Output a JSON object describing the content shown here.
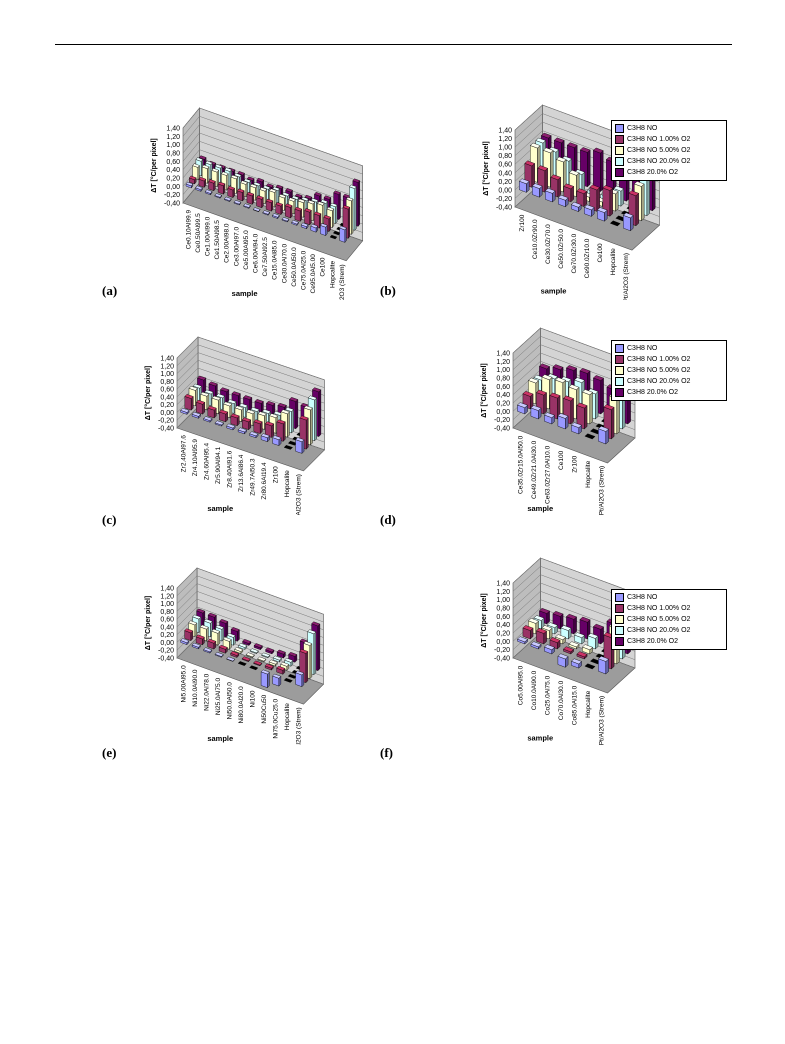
{
  "series_names": [
    "C3H8 NO",
    "C3H8 NO 1.00% O2",
    "C3H8 NO 5.00% O2",
    "C3H8 NO 20.0% O2",
    "C3H8 20.0% O2"
  ],
  "series_colors": [
    "#9999ff",
    "#993366",
    "#ffffcc",
    "#ccffff",
    "#660066"
  ],
  "series_tints": [
    "#c8c8ff",
    "#cc3366",
    "#fffff0",
    "#eaffff",
    "#8a1e6e"
  ],
  "chart_data": [
    {
      "type": "bar",
      "label": "(a)",
      "xlabel": "sample",
      "ylabel": "ΔT [°C/per pixel]",
      "ylim": [
        -0.4,
        1.4
      ],
      "yticks": [
        "-0,40",
        "-0,20",
        "0,00",
        "0,20",
        "0,40",
        "0,60",
        "0,80",
        "1,00",
        "1,20",
        "1,40"
      ],
      "categories": [
        "Ce0.10Al99.9",
        "Ce0.50Al99.5",
        "Ce1.00Al99.0",
        "Ce1.50Al98.5",
        "Ce2.00Al98.0",
        "Ce3.00Al97.0",
        "Ce5.00Al95.0",
        "Ce6.00Al94.0",
        "Ce7.50Al92.5",
        "Ce15.0Al85.0",
        "Ce30.0Al70.0",
        "Ce50.0Al50.0",
        "Ce75.0Al25.0",
        "Ce95.0Al5.00",
        "Ce100",
        "Hopcalite",
        "Pt/Al2O3 (Strem)"
      ],
      "series": [
        {
          "values": [
            0.05,
            0.04,
            0.03,
            0.02,
            0.02,
            0.02,
            0.02,
            0.01,
            0.02,
            0.03,
            0.02,
            0.03,
            0.05,
            0.1,
            0.2,
            0.0,
            0.3
          ]
        },
        {
          "values": [
            0.1,
            0.15,
            0.18,
            0.2,
            0.18,
            0.2,
            0.2,
            0.2,
            0.2,
            0.2,
            0.25,
            0.25,
            0.3,
            0.3,
            0.3,
            0.0,
            0.7
          ]
        },
        {
          "values": [
            0.3,
            0.35,
            0.35,
            0.35,
            0.35,
            0.3,
            0.3,
            0.3,
            0.35,
            0.3,
            0.3,
            0.35,
            0.4,
            0.45,
            0.4,
            0.0,
            0.8
          ]
        },
        {
          "values": [
            0.35,
            0.35,
            0.35,
            0.35,
            0.3,
            0.25,
            0.25,
            0.25,
            0.3,
            0.25,
            0.25,
            0.3,
            0.35,
            0.4,
            0.4,
            0.0,
            1.0
          ]
        },
        {
          "values": [
            0.3,
            0.25,
            0.25,
            0.25,
            0.25,
            0.2,
            0.25,
            0.2,
            0.25,
            0.25,
            0.2,
            0.25,
            0.4,
            0.4,
            0.6,
            0.6,
            1.05
          ]
        }
      ]
    },
    {
      "type": "bar",
      "label": "(b)",
      "xlabel": "sample",
      "ylabel": "ΔT [°C/per pixel]",
      "ylim": [
        -0.4,
        1.4
      ],
      "yticks": [
        "-0,40",
        "-0,20",
        "0,00",
        "0,20",
        "0,40",
        "0,60",
        "0,80",
        "1,00",
        "1,20",
        "1,40"
      ],
      "categories": [
        "Zr100",
        "Ce10.0Zr90.0",
        "Ce30.0Zr70.0",
        "Ce50.0Zr50.0",
        "Ce70.0Zr30.0",
        "Ce90.0Zr10.0",
        "Ce100",
        "Hopcalite",
        "Pt/Al2O3 (Strem)"
      ],
      "series": [
        {
          "values": [
            0.2,
            0.2,
            0.2,
            0.15,
            0.1,
            0.15,
            0.2,
            0.0,
            0.3
          ]
        },
        {
          "values": [
            0.5,
            0.5,
            0.4,
            0.3,
            0.3,
            0.5,
            0.6,
            0.0,
            0.7
          ]
        },
        {
          "values": [
            0.8,
            0.8,
            0.7,
            0.5,
            0.1,
            0.1,
            0.4,
            0.0,
            0.8
          ]
        },
        {
          "values": [
            0.8,
            0.7,
            0.6,
            0.4,
            0.1,
            0.1,
            0.35,
            0.0,
            1.0
          ]
        },
        {
          "values": [
            0.8,
            0.8,
            0.8,
            0.8,
            0.9,
            0.8,
            0.8,
            0.8,
            1.1
          ]
        }
      ]
    },
    {
      "type": "bar",
      "label": "(c)",
      "xlabel": "sample",
      "ylabel": "ΔT [°C/per pixel]",
      "ylim": [
        -0.4,
        1.4
      ],
      "yticks": [
        "-0,40",
        "-0,20",
        "0,00",
        "0,20",
        "0,40",
        "0,60",
        "0,80",
        "1,00",
        "1,20",
        "1,40"
      ],
      "categories": [
        "Zr2.40Al97.6",
        "Zr4.10Al95.9",
        "Zr4.60Al95.4",
        "Zr5.90Al94.1",
        "Zr8.40Al91.6",
        "Zr13.6Al86.4",
        "Zr49.7Al50.3",
        "Zr80.6Al19.4",
        "Zr100",
        "Hopcalite",
        "Pt/Al2O3 (Strem)"
      ],
      "series": [
        {
          "values": [
            0.05,
            0.05,
            0.04,
            0.03,
            0.05,
            0.05,
            0.05,
            0.1,
            0.15,
            0.0,
            0.3
          ]
        },
        {
          "values": [
            0.3,
            0.25,
            0.2,
            0.2,
            0.2,
            0.2,
            0.25,
            0.3,
            0.45,
            0.0,
            0.75
          ]
        },
        {
          "values": [
            0.4,
            0.35,
            0.35,
            0.3,
            0.3,
            0.3,
            0.35,
            0.4,
            0.6,
            0.0,
            0.9
          ]
        },
        {
          "values": [
            0.35,
            0.3,
            0.3,
            0.25,
            0.25,
            0.25,
            0.3,
            0.35,
            0.55,
            0.0,
            1.05
          ]
        },
        {
          "values": [
            0.45,
            0.4,
            0.35,
            0.35,
            0.35,
            0.35,
            0.4,
            0.45,
            0.7,
            0.65,
            1.15
          ]
        }
      ]
    },
    {
      "type": "bar",
      "label": "(d)",
      "xlabel": "sample",
      "ylabel": "ΔT [°C/per pixel]",
      "ylim": [
        -0.4,
        1.4
      ],
      "yticks": [
        "-0,40",
        "-0,20",
        "0,00",
        "0,20",
        "0,40",
        "0,60",
        "0,80",
        "1,00",
        "1,20",
        "1,40"
      ],
      "categories": [
        "Ce35.0Zr15.0Al50.0",
        "Ce49.0Zr21.0Al30.0",
        "Ce63.0Zr27.0Al10.0",
        "Ce100",
        "Zr100",
        "Hopcalite",
        "Pt/Al2O3 (Strem)"
      ],
      "series": [
        {
          "values": [
            0.15,
            0.2,
            0.15,
            0.25,
            0.15,
            0.0,
            0.3
          ]
        },
        {
          "values": [
            0.3,
            0.45,
            0.5,
            0.55,
            0.5,
            0.0,
            0.7
          ]
        },
        {
          "values": [
            0.5,
            0.7,
            0.75,
            0.7,
            0.7,
            0.0,
            0.85
          ]
        },
        {
          "values": [
            0.45,
            0.6,
            0.65,
            0.75,
            0.6,
            0.0,
            1.1
          ]
        },
        {
          "values": [
            0.6,
            0.7,
            0.8,
            0.85,
            0.8,
            0.7,
            1.15
          ]
        }
      ]
    },
    {
      "type": "bar",
      "label": "(e)",
      "xlabel": "sample",
      "ylabel": "ΔT [°C/per pixel]",
      "ylim": [
        -0.4,
        1.4
      ],
      "yticks": [
        "-0,40",
        "-0,20",
        "0,00",
        "0,20",
        "0,40",
        "0,60",
        "0,80",
        "1,00",
        "1,20",
        "1,40"
      ],
      "categories": [
        "Ni5.00Al95.0",
        "Ni10.0Al90.0",
        "Ni22.0Al78.0",
        "Ni25.0Al75.0",
        "Ni50.0Al50.0",
        "Ni80.0Al20.0",
        "Ni100",
        "Ni50Cu50",
        "Ni75.0Cu25.0",
        "Hopcalite",
        "Pt/Al2O3 (Strem)"
      ],
      "series": [
        {
          "values": [
            0.05,
            0.04,
            0.03,
            0.02,
            0.01,
            0.0,
            0.0,
            -0.35,
            -0.2,
            0.0,
            0.3
          ]
        },
        {
          "values": [
            0.2,
            0.15,
            0.15,
            0.1,
            0.05,
            0.02,
            0.02,
            0.05,
            0.1,
            0.0,
            0.75
          ]
        },
        {
          "values": [
            0.3,
            0.3,
            0.3,
            0.2,
            0.05,
            0.02,
            0.02,
            0.05,
            0.1,
            0.0,
            0.85
          ]
        },
        {
          "values": [
            0.35,
            0.35,
            0.3,
            0.2,
            0.05,
            0.02,
            0.02,
            0.05,
            0.1,
            0.0,
            1.05
          ]
        },
        {
          "values": [
            0.4,
            0.4,
            0.35,
            0.25,
            0.05,
            0.05,
            0.05,
            0.1,
            0.15,
            0.6,
            1.15
          ]
        }
      ]
    },
    {
      "type": "bar",
      "label": "(f)",
      "xlabel": "sample",
      "ylabel": "ΔT [°C/per pixel]",
      "ylim": [
        -0.4,
        1.4
      ],
      "yticks": [
        "-0,40",
        "-0,20",
        "0,00",
        "0,20",
        "0,40",
        "0,60",
        "0,80",
        "1,00",
        "1,20",
        "1,40"
      ],
      "categories": [
        "Co5.00Al95.0",
        "Co10.0Al90.0",
        "Co25.0Al75.0",
        "Co70.0Al30.0",
        "Co85.0Al15.0",
        "Hopcalite",
        "Pt/Al2O3 (Strem)"
      ],
      "series": [
        {
          "values": [
            0.05,
            0.05,
            0.1,
            -0.2,
            -0.1,
            0.0,
            0.3
          ]
        },
        {
          "values": [
            0.2,
            0.25,
            0.15,
            0.05,
            0.05,
            0.0,
            0.75
          ]
        },
        {
          "values": [
            0.25,
            0.2,
            0.1,
            0.05,
            0.1,
            0.0,
            0.85
          ]
        },
        {
          "values": [
            0.2,
            0.15,
            0.2,
            0.15,
            0.25,
            0.0,
            1.05
          ]
        },
        {
          "values": [
            0.25,
            0.3,
            0.35,
            0.4,
            0.35,
            0.6,
            1.15
          ]
        }
      ]
    }
  ]
}
